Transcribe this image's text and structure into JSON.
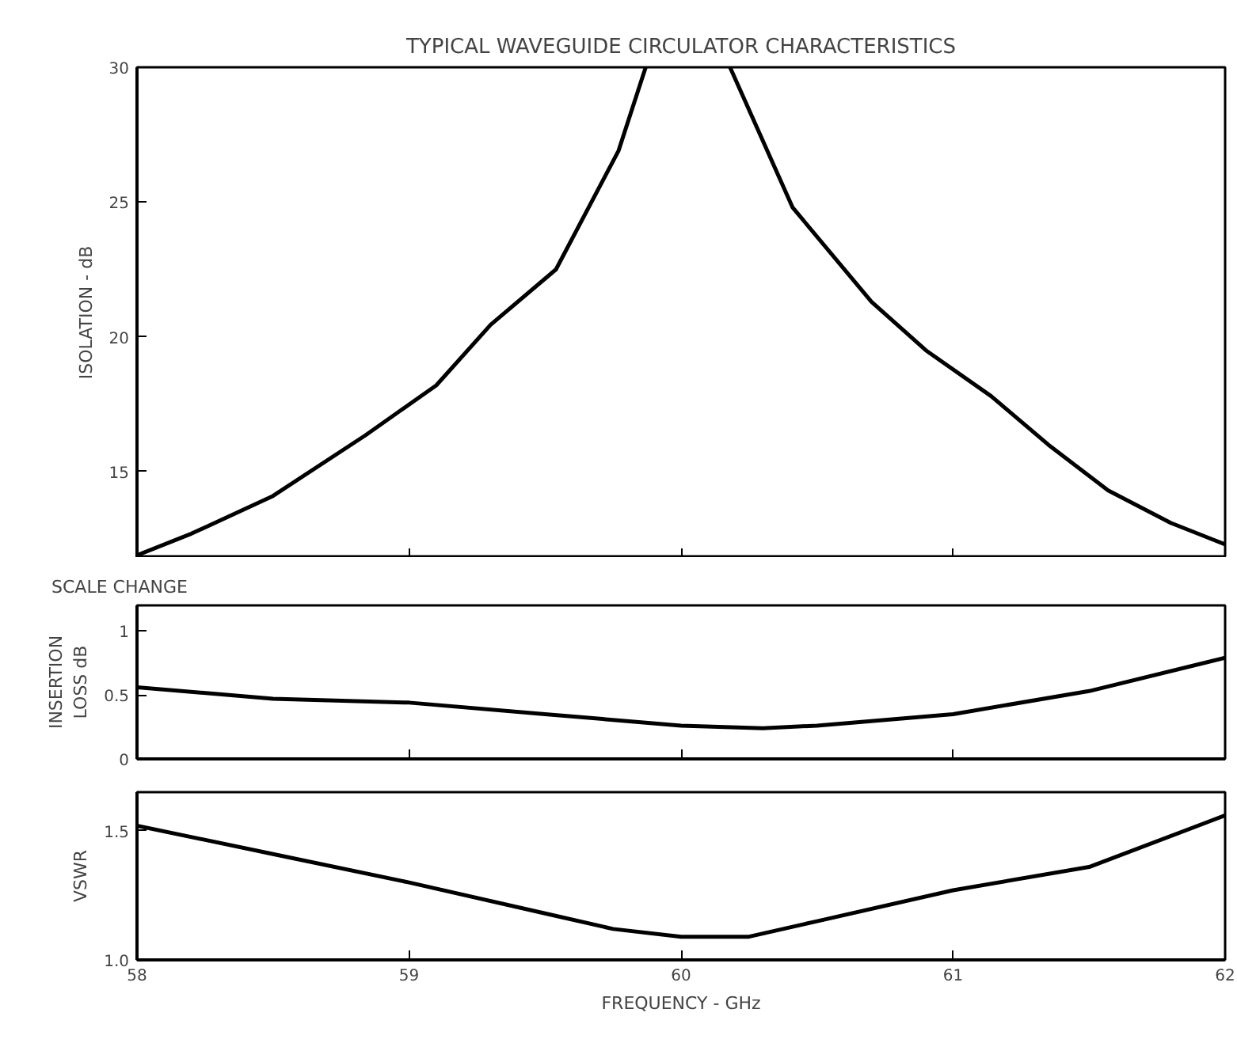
{
  "chart_data": [
    {
      "type": "line",
      "title": "TYPICAL WAVEGUIDE CIRCULATOR CHARACTERISTICS",
      "ylabel": "ISOLATION - dB",
      "tick_labels": "y",
      "xlim": [
        58,
        62
      ],
      "xticks": [
        58,
        59,
        60,
        61,
        62
      ],
      "ylim": [
        11.8,
        30
      ],
      "yticks": [
        15,
        20,
        25,
        30
      ],
      "series": [
        {
          "color": "#000000",
          "x": [
            58,
            58.2,
            58.5,
            58.84,
            59.1,
            59.3,
            59.54,
            59.77,
            59.87,
            60.0,
            60.18,
            60.41,
            60.7,
            60.9,
            61.14,
            61.35,
            61.57,
            61.8,
            62
          ],
          "values": [
            11.9,
            12.7,
            14.1,
            16.35,
            18.2,
            20.45,
            22.5,
            26.9,
            30,
            null,
            30,
            24.8,
            21.3,
            19.5,
            17.8,
            16.0,
            14.3,
            13.1,
            12.3
          ]
        }
      ]
    },
    {
      "type": "line",
      "ylabel": "INSERTION LOSS dB",
      "annotations": [
        "SCALE CHANGE"
      ],
      "tick_labels": "y",
      "xlim": [
        58,
        62
      ],
      "xticks": [
        58,
        59,
        60,
        61,
        62
      ],
      "ylim": [
        0,
        1.2
      ],
      "yticks": [
        0,
        0.5,
        1
      ],
      "series": [
        {
          "color": "#000000",
          "x": [
            58,
            58.5,
            59,
            59.5,
            60,
            60.3,
            60.5,
            61,
            61.5,
            62
          ],
          "values": [
            0.56,
            0.47,
            0.44,
            0.35,
            0.26,
            0.24,
            0.26,
            0.35,
            0.53,
            0.79
          ]
        }
      ]
    },
    {
      "type": "line",
      "ylabel": "VSWR",
      "xlabel": "FREQUENCY - GHz",
      "xlim": [
        58,
        62
      ],
      "xticks": [
        58,
        59,
        60,
        61,
        62
      ],
      "ylim": [
        1.0,
        1.65
      ],
      "yticks": [
        {
          "value": 1.0,
          "label": "1.0"
        },
        1.5
      ],
      "series": [
        {
          "color": "#000000",
          "x": [
            58,
            58.5,
            59,
            59.5,
            59.75,
            60,
            60.25,
            60.5,
            61,
            61.5,
            62
          ],
          "values": [
            1.52,
            1.41,
            1.3,
            1.18,
            1.12,
            1.09,
            1.09,
            1.15,
            1.27,
            1.36,
            1.56
          ]
        }
      ]
    }
  ]
}
